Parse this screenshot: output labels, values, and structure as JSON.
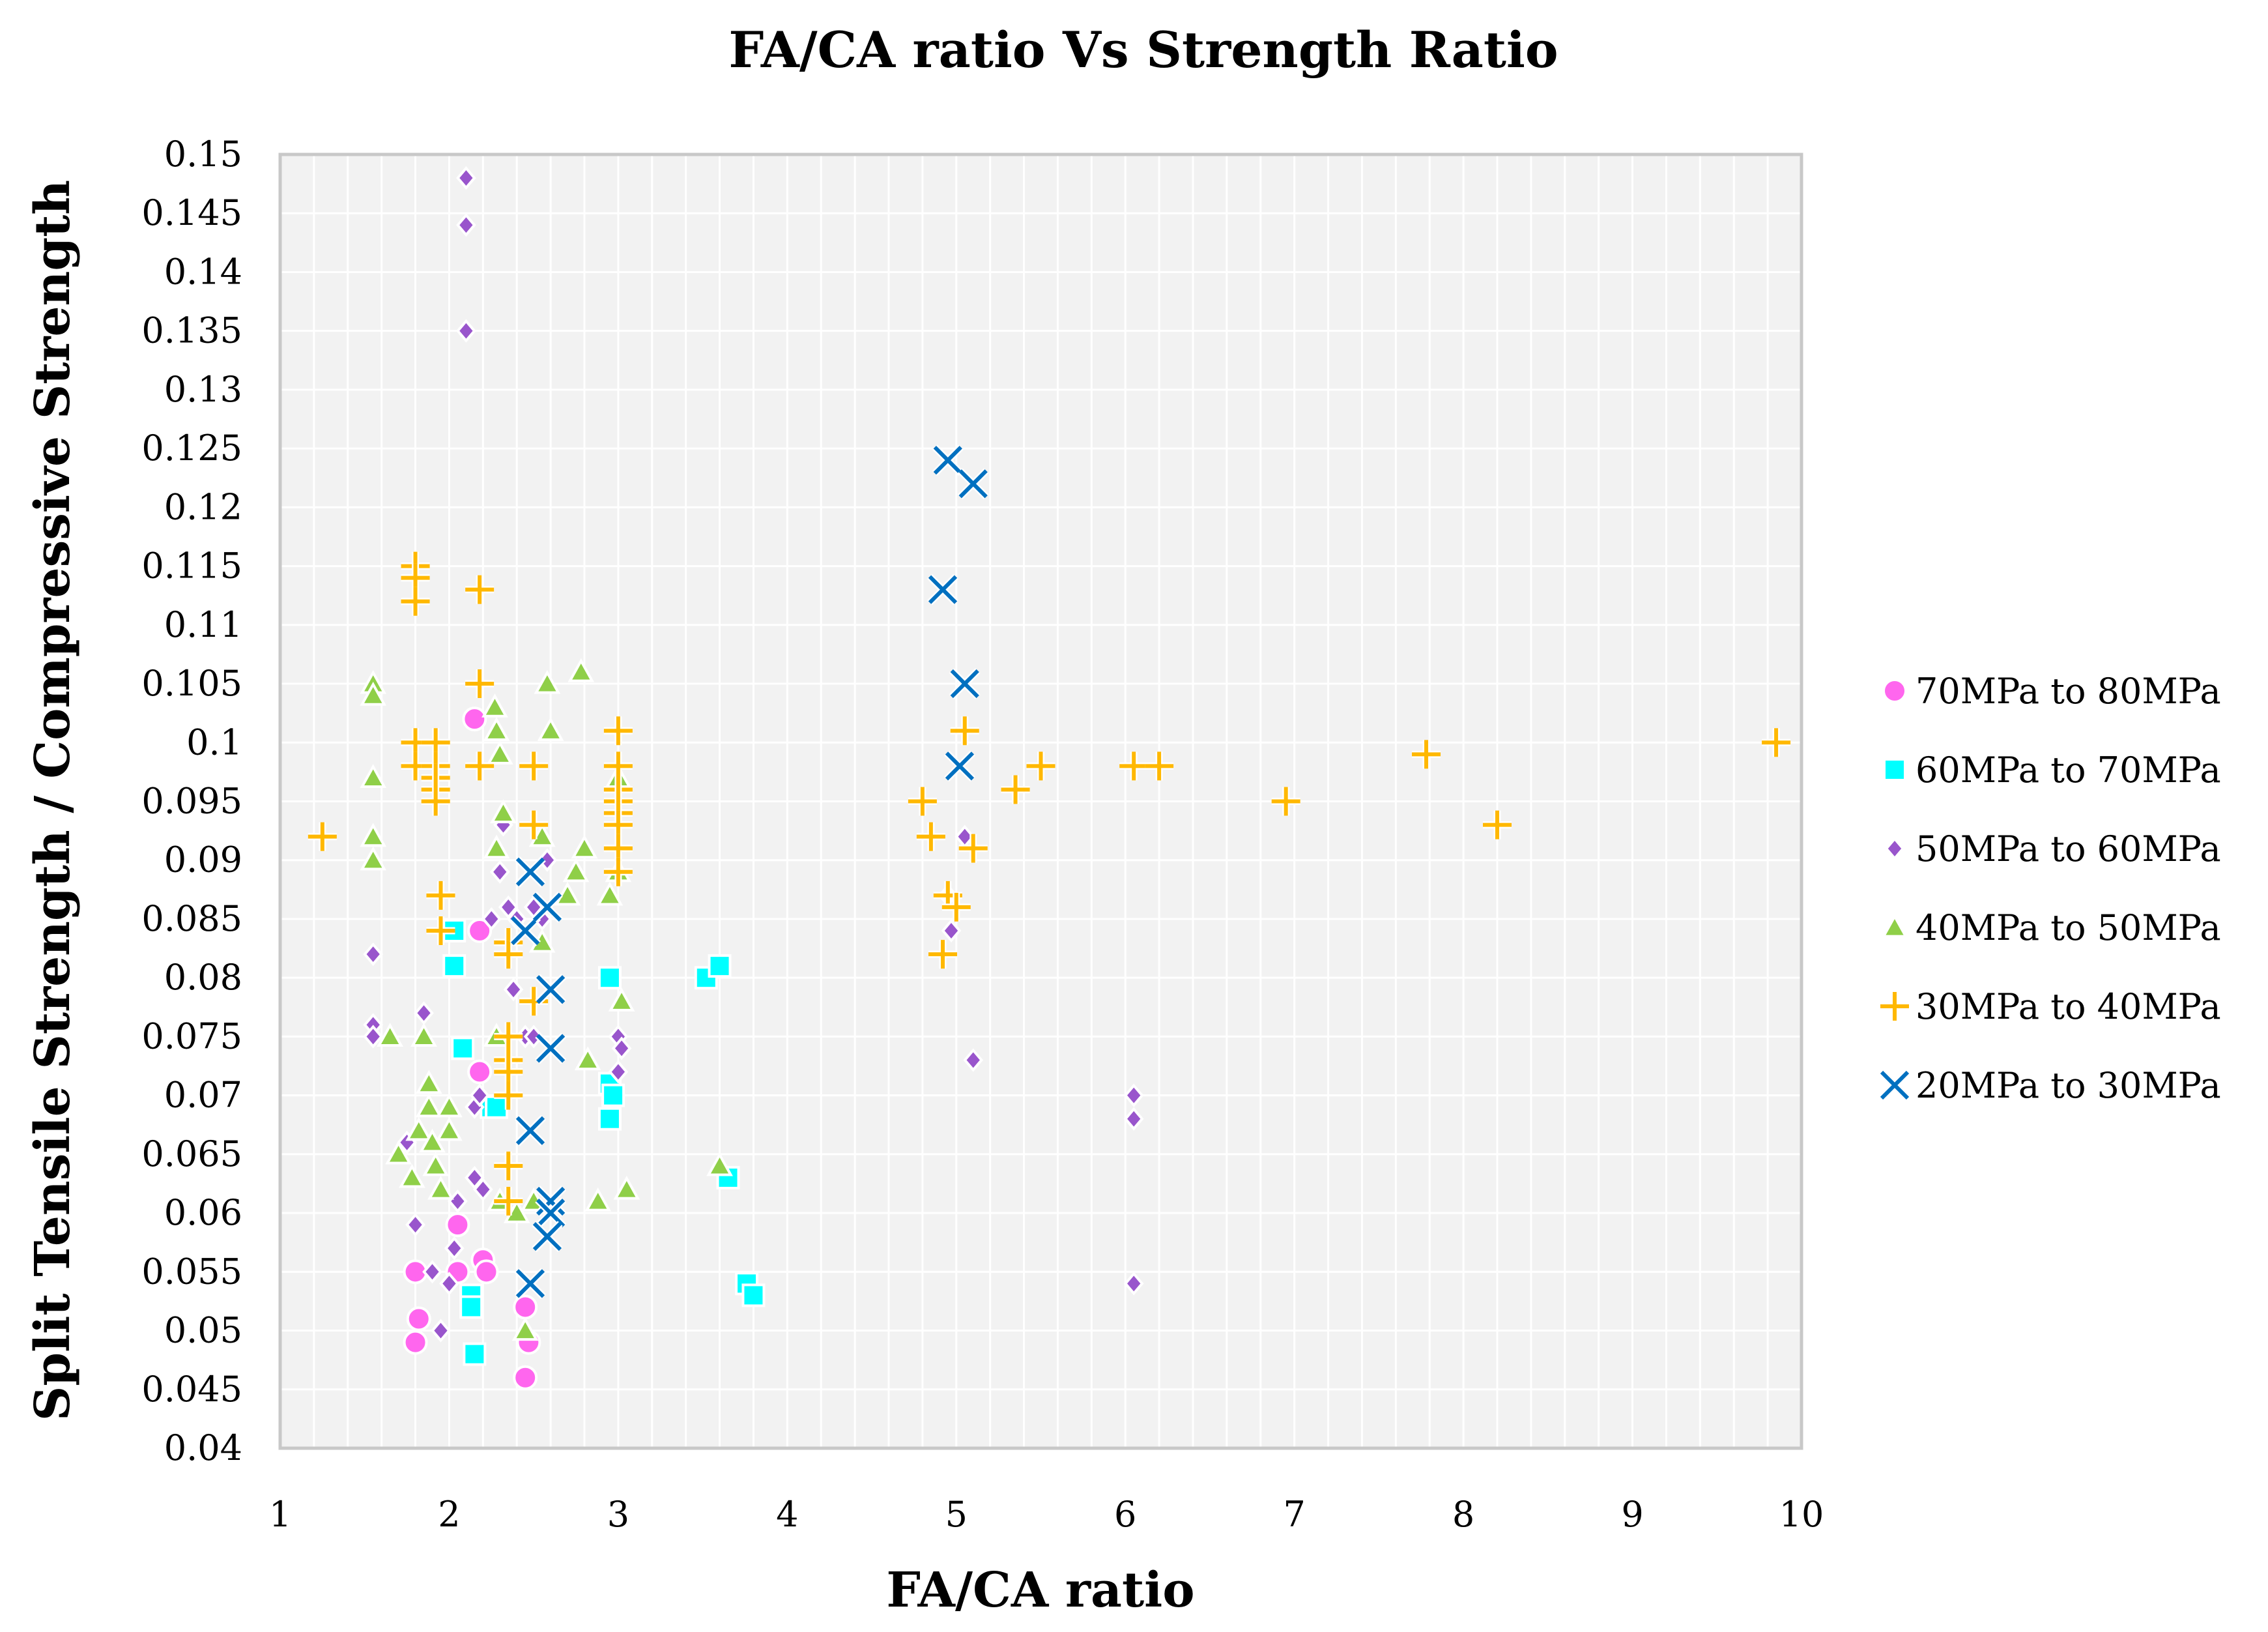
{
  "colors": {
    "plot_background": "#f2f2f2",
    "gridline": "#ffffff",
    "frame": "#c8c8c8",
    "70MPa to 80MPa": "#ff66ee",
    "60MPa to 70MPa": "#00ffff",
    "50MPa to 60MPa": "#9955cc",
    "40MPa to 50MPa": "#8fcf48",
    "30MPa to 40MPa": "#ffb800",
    "20MPa to 30MPa": "#0070c0"
  },
  "chart_data": {
    "type": "scatter",
    "title": "FA/CA ratio Vs Strength Ratio",
    "xlabel": "FA/CA ratio",
    "ylabel": "Split Tensile Strength / Compressive Strength",
    "xlim": [
      1,
      10
    ],
    "ylim": [
      0.04,
      0.15
    ],
    "x_ticks": [
      "1",
      "2",
      "3",
      "4",
      "5",
      "6",
      "7",
      "8",
      "9",
      "10"
    ],
    "y_ticks": [
      "0.04",
      "0.045",
      "0.05",
      "0.055",
      "0.06",
      "0.065",
      "0.07",
      "0.075",
      "0.08",
      "0.085",
      "0.09",
      "0.095",
      "0.1",
      "0.105",
      "0.11",
      "0.115",
      "0.12",
      "0.125",
      "0.13",
      "0.135",
      "0.14",
      "0.145",
      "0.15"
    ],
    "grid": true,
    "legend_position": "right",
    "series": [
      {
        "name": "70MPa to 80MPa",
        "marker": "circle",
        "x": [
          2.15,
          2.18,
          2.18,
          2.05,
          2.2,
          2.22,
          1.8,
          1.82,
          1.8,
          2.45,
          2.47,
          2.45,
          2.05
        ],
        "y": [
          0.102,
          0.084,
          0.072,
          0.059,
          0.056,
          0.055,
          0.055,
          0.051,
          0.049,
          0.052,
          0.049,
          0.046,
          0.055
        ]
      },
      {
        "name": "60MPa to 70MPa",
        "marker": "square",
        "x": [
          2.03,
          2.03,
          2.08,
          2.25,
          2.28,
          2.13,
          2.13,
          2.15,
          2.95,
          2.95,
          2.97,
          2.95,
          3.52,
          3.6,
          3.65,
          3.76,
          3.8
        ],
        "y": [
          0.084,
          0.081,
          0.074,
          0.069,
          0.069,
          0.053,
          0.052,
          0.048,
          0.08,
          0.071,
          0.07,
          0.068,
          0.08,
          0.081,
          0.063,
          0.054,
          0.053
        ],
        "y_note": "estimated from gridlines"
      },
      {
        "name": "50MPa to 60MPa",
        "marker": "diamond",
        "x": [
          2.1,
          2.1,
          2.1,
          1.55,
          1.55,
          1.55,
          1.85,
          1.75,
          1.8,
          1.9,
          1.95,
          2.0,
          2.03,
          2.05,
          2.15,
          2.18,
          2.2,
          2.15,
          2.25,
          2.3,
          2.32,
          2.35,
          2.38,
          2.4,
          2.45,
          2.5,
          2.5,
          2.55,
          2.58,
          3.0,
          3.02,
          3.0,
          5.05,
          4.95,
          4.97,
          5.1,
          6.05,
          6.05,
          6.05
        ],
        "y": [
          0.148,
          0.144,
          0.135,
          0.082,
          0.076,
          0.075,
          0.077,
          0.066,
          0.059,
          0.055,
          0.05,
          0.054,
          0.057,
          0.061,
          0.069,
          0.07,
          0.062,
          0.063,
          0.085,
          0.089,
          0.093,
          0.086,
          0.079,
          0.085,
          0.075,
          0.075,
          0.086,
          0.085,
          0.09,
          0.075,
          0.074,
          0.072,
          0.092,
          0.087,
          0.084,
          0.073,
          0.07,
          0.068,
          0.054
        ]
      },
      {
        "name": "40MPa to 50MPa",
        "marker": "triangle",
        "x": [
          1.55,
          1.55,
          1.55,
          1.55,
          1.55,
          1.65,
          1.7,
          1.78,
          1.82,
          1.85,
          1.88,
          1.88,
          1.9,
          1.92,
          1.95,
          2.0,
          2.0,
          2.27,
          2.28,
          2.3,
          2.32,
          2.28,
          2.28,
          2.3,
          2.4,
          2.45,
          2.5,
          2.55,
          2.55,
          2.58,
          2.6,
          2.7,
          2.75,
          2.8,
          2.78,
          2.82,
          2.88,
          2.95,
          3.0,
          3.0,
          3.02,
          3.05,
          3.6
        ],
        "y": [
          0.105,
          0.104,
          0.097,
          0.092,
          0.09,
          0.075,
          0.065,
          0.063,
          0.067,
          0.075,
          0.071,
          0.069,
          0.066,
          0.064,
          0.062,
          0.067,
          0.069,
          0.103,
          0.101,
          0.099,
          0.094,
          0.091,
          0.075,
          0.061,
          0.06,
          0.05,
          0.061,
          0.083,
          0.092,
          0.105,
          0.101,
          0.087,
          0.089,
          0.091,
          0.106,
          0.073,
          0.061,
          0.087,
          0.097,
          0.089,
          0.078,
          0.062,
          0.064
        ]
      },
      {
        "name": "30MPa to 40MPa",
        "marker": "plus",
        "x": [
          1.25,
          1.8,
          1.8,
          1.8,
          1.8,
          1.8,
          1.92,
          1.92,
          1.92,
          1.92,
          1.92,
          1.95,
          1.95,
          2.18,
          2.18,
          2.18,
          2.35,
          2.35,
          2.35,
          2.35,
          2.35,
          2.35,
          2.35,
          2.35,
          2.5,
          2.5,
          2.5,
          3.0,
          3.0,
          3.0,
          3.0,
          3.0,
          3.0,
          3.0,
          3.0,
          4.8,
          4.85,
          4.92,
          4.95,
          5.0,
          5.05,
          5.1,
          5.35,
          5.5,
          6.05,
          6.2,
          6.95,
          7.78,
          8.2,
          9.85
        ],
        "y": [
          0.092,
          0.115,
          0.114,
          0.112,
          0.1,
          0.098,
          0.1,
          0.098,
          0.097,
          0.096,
          0.095,
          0.087,
          0.084,
          0.113,
          0.105,
          0.098,
          0.083,
          0.082,
          0.075,
          0.073,
          0.072,
          0.07,
          0.064,
          0.061,
          0.098,
          0.093,
          0.078,
          0.101,
          0.098,
          0.096,
          0.095,
          0.094,
          0.093,
          0.091,
          0.089,
          0.095,
          0.092,
          0.082,
          0.087,
          0.086,
          0.101,
          0.091,
          0.096,
          0.098,
          0.098,
          0.098,
          0.095,
          0.099,
          0.093,
          0.1
        ]
      },
      {
        "name": "20MPa to 30MPa",
        "marker": "x",
        "x": [
          4.95,
          5.1,
          4.92,
          5.05,
          5.02,
          2.48,
          2.45,
          2.58,
          2.6,
          2.6,
          2.48,
          2.6,
          2.6,
          2.58,
          2.48
        ],
        "y": [
          0.124,
          0.122,
          0.113,
          0.105,
          0.098,
          0.089,
          0.084,
          0.086,
          0.079,
          0.074,
          0.067,
          0.061,
          0.06,
          0.058,
          0.054
        ]
      }
    ]
  }
}
